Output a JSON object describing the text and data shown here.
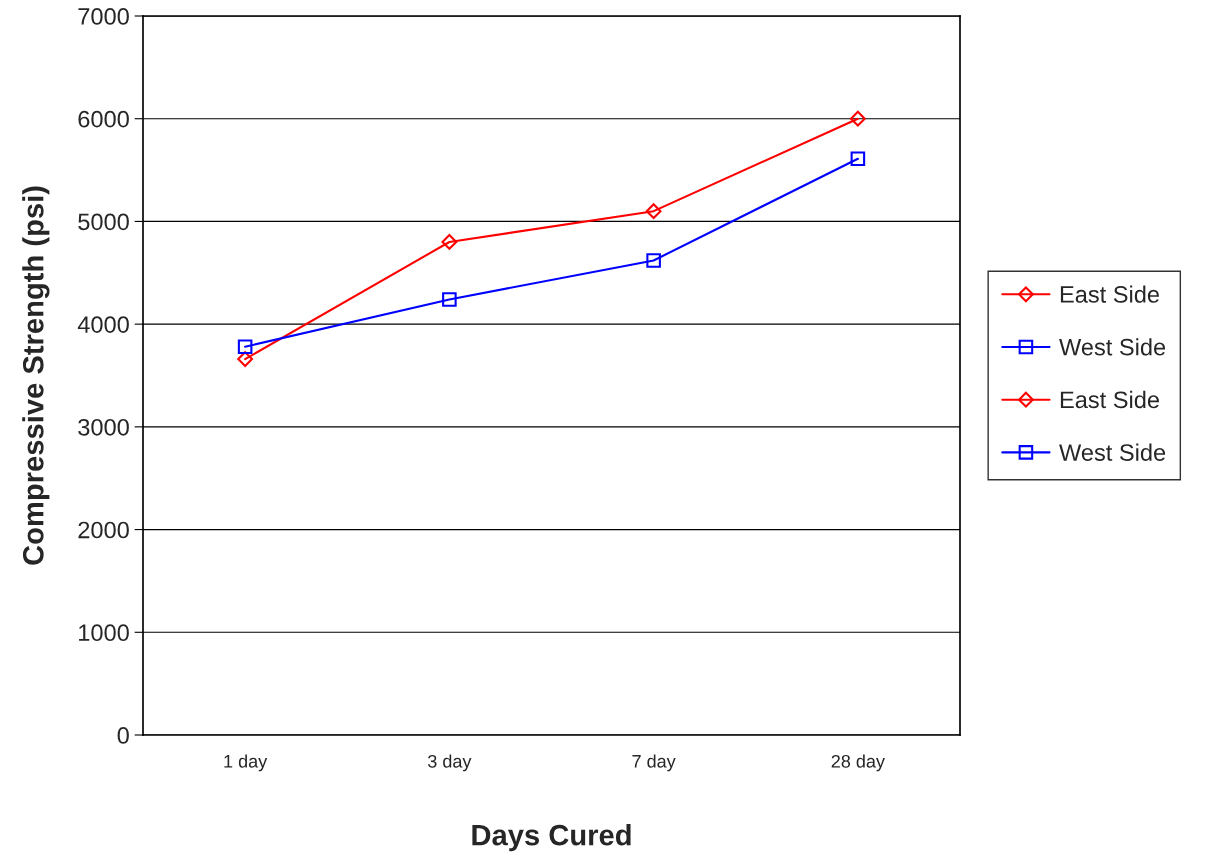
{
  "chart_data": {
    "type": "line",
    "xlabel": "Days Cured",
    "ylabel": "Compressive Strength (psi)",
    "categories": [
      "1 day",
      "3 day",
      "7 day",
      "28 day"
    ],
    "series": [
      {
        "name": "East Side",
        "color": "#ff0000",
        "marker": "diamond",
        "values": [
          3660,
          4800,
          5100,
          6000
        ]
      },
      {
        "name": "West Side",
        "color": "#0000ff",
        "marker": "square",
        "values": [
          3780,
          4240,
          4620,
          5610
        ]
      },
      {
        "name": "East Side",
        "color": "#ff0000",
        "marker": "diamond",
        "values": [
          null,
          null,
          null,
          null
        ]
      },
      {
        "name": "West Side",
        "color": "#0000ff",
        "marker": "square",
        "values": [
          null,
          null,
          null,
          null
        ]
      }
    ],
    "ylim": [
      0,
      7000
    ],
    "yticks": [
      0,
      1000,
      2000,
      3000,
      4000,
      5000,
      6000,
      7000
    ],
    "grid": "y",
    "legend": "right",
    "line_style": "solid"
  }
}
